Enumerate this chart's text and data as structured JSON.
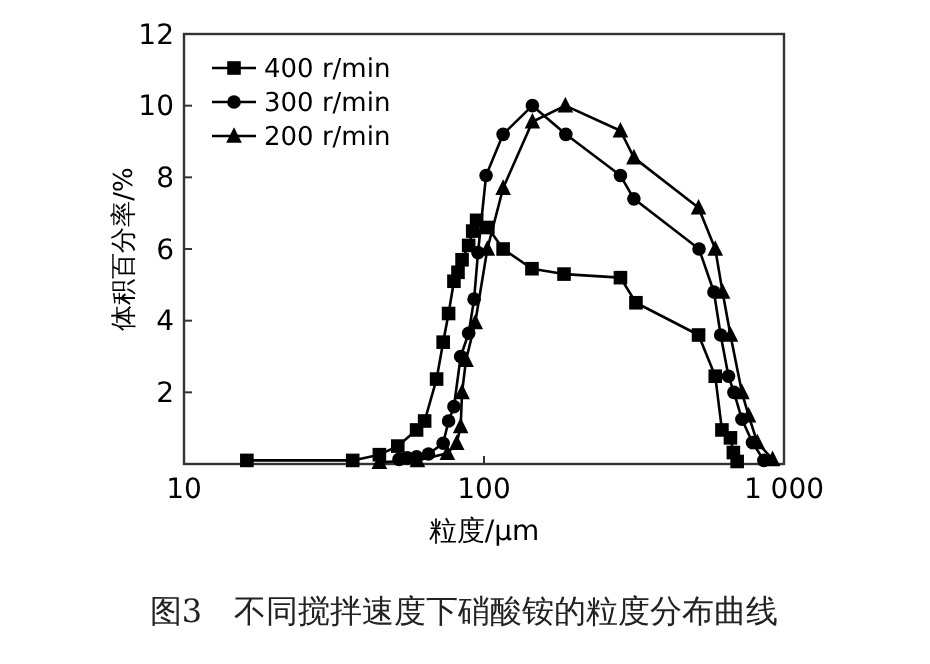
{
  "chart_data": {
    "type": "line",
    "xlabel": "粒度/μm",
    "ylabel": "体积百分率/%",
    "log": "x",
    "xlim": [
      10,
      1000
    ],
    "xticks": [
      10,
      100,
      {
        "value": 1000,
        "label": "1 000"
      }
    ],
    "ylim": [
      0,
      12
    ],
    "yticks": [
      2,
      4,
      6,
      8,
      10,
      12
    ],
    "legend": "top left",
    "grid": false,
    "line_style": "solid",
    "annotations": [
      "图3　不同搅拌速度下硝酸铵的粒度分布曲线"
    ],
    "series": [
      {
        "name": "400 r/min",
        "color": "#000000",
        "marker": "square",
        "x": [
          16.2,
          36.5,
          44.8,
          51.6,
          59.6,
          63.4,
          69.5,
          73.1,
          76.2,
          79.4,
          81.9,
          84.5,
          88.9,
          91.7,
          94.5,
          103,
          115.8,
          144.5,
          184.8,
          285,
          321,
          519,
          590,
          621,
          663,
          678,
          698
        ],
        "values": [
          0.1,
          0.1,
          0.26,
          0.5,
          0.95,
          1.2,
          2.37,
          3.4,
          4.2,
          5.1,
          5.35,
          5.7,
          6.1,
          6.5,
          6.8,
          6.6,
          6.0,
          5.45,
          5.3,
          5.2,
          4.5,
          3.6,
          2.45,
          0.95,
          0.73,
          0.32,
          0.07
        ]
      },
      {
        "name": "300 r/min",
        "color": "#000000",
        "marker": "circle",
        "x": [
          52.1,
          55.5,
          59.6,
          65.3,
          73.1,
          76.2,
          79.4,
          83.6,
          88.9,
          92.7,
          95.5,
          101.6,
          115.8,
          145,
          187.4,
          285,
          316,
          521,
          584,
          615,
          653,
          681,
          724,
          785,
          857
        ],
        "values": [
          0.13,
          0.17,
          0.2,
          0.28,
          0.58,
          1.2,
          1.6,
          3.0,
          3.65,
          4.6,
          5.9,
          8.05,
          9.2,
          10.0,
          9.2,
          8.05,
          7.4,
          6.0,
          4.8,
          3.6,
          2.45,
          2.0,
          1.25,
          0.6,
          0.1
        ]
      },
      {
        "name": "200 r/min",
        "color": "#000000",
        "marker": "triangle",
        "x": [
          44.8,
          60,
          75.5,
          81.1,
          83.6,
          84.5,
          87.1,
          93.5,
          102.6,
          115.8,
          145,
          186.7,
          285,
          316,
          519,
          590,
          624,
          663,
          724,
          762,
          815,
          916
        ],
        "values": [
          0.05,
          0.1,
          0.3,
          0.58,
          1.05,
          2.0,
          2.9,
          3.95,
          6.0,
          7.7,
          9.55,
          10.0,
          9.3,
          8.55,
          7.15,
          6.0,
          4.8,
          3.6,
          2.0,
          1.35,
          0.6,
          0.13
        ]
      }
    ]
  }
}
